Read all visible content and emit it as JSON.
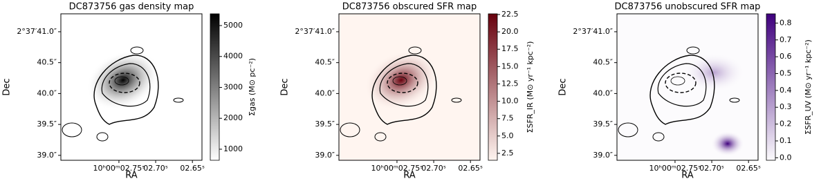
{
  "chart_data": [
    {
      "type": "image",
      "title": "DC873756 gas density map",
      "xlabel": "RA",
      "ylabel": "Dec",
      "xlim": [
        2.829,
        2.637
      ],
      "xticks": [
        {
          "value": 2.75,
          "label": "10ʰ00ᵐ02.75ˢ"
        },
        {
          "value": 2.7,
          "label": "02.70ˢ"
        },
        {
          "value": 2.65,
          "label": "02.65ˢ"
        }
      ],
      "ylim": [
        38.92,
        41.29
      ],
      "yticks": [
        {
          "value": 41.0,
          "label": "2°37′41.0″"
        },
        {
          "value": 40.5,
          "label": "40.5″"
        },
        {
          "value": 40.0,
          "label": "40.0″"
        },
        {
          "value": 39.5,
          "label": "39.5″"
        },
        {
          "value": 39.0,
          "label": "39.0″"
        }
      ],
      "colorbar_label": "Σgas (M⊙ pc⁻²)",
      "clim": [
        642,
        5380
      ],
      "cticks": [
        1000,
        2000,
        3000,
        4000,
        5000
      ],
      "cmap": [
        "#ffffff",
        "#000000"
      ]
    },
    {
      "type": "image",
      "title": "DC873756 obscured SFR map",
      "xlabel": "RA",
      "ylabel": "Dec",
      "xlim": [
        2.829,
        2.637
      ],
      "xticks": [
        {
          "value": 2.75,
          "label": "10ʰ00ᵐ02.75ˢ"
        },
        {
          "value": 2.7,
          "label": "02.70ˢ"
        },
        {
          "value": 2.65,
          "label": "02.65ˢ"
        }
      ],
      "ylim": [
        38.92,
        41.29
      ],
      "yticks": [
        {
          "value": 41.0,
          "label": "2°37′41.0″"
        },
        {
          "value": 40.5,
          "label": "40.5″"
        },
        {
          "value": 40.0,
          "label": "40.0″"
        },
        {
          "value": 39.5,
          "label": "39.5″"
        },
        {
          "value": 39.0,
          "label": "39.0″"
        }
      ],
      "colorbar_label": "ΣSFR_IR (M⊙ yr⁻¹ kpc⁻²)",
      "clim": [
        1.5,
        22.6
      ],
      "cticks": [
        2.5,
        {
          "value": 5,
          "label": "5.0"
        },
        7.5,
        {
          "value": 10,
          "label": "10.0"
        },
        12.5,
        {
          "value": 15,
          "label": "15.0"
        },
        17.5,
        {
          "value": 20,
          "label": "20.0"
        },
        22.5
      ],
      "cmap": [
        "#fff5f0",
        "#67000d"
      ]
    },
    {
      "type": "image",
      "title": "DC873756 unobscured SFR map",
      "xlabel": "RA",
      "ylabel": "Dec",
      "xlim": [
        2.829,
        2.637
      ],
      "xticks": [
        {
          "value": 2.75,
          "label": "10ʰ00ᵐ02.75ˢ"
        },
        {
          "value": 2.7,
          "label": "02.70ˢ"
        },
        {
          "value": 2.65,
          "label": "02.65ˢ"
        }
      ],
      "ylim": [
        38.92,
        41.29
      ],
      "yticks": [
        {
          "value": 41.0,
          "label": "2°37′41.0″"
        },
        {
          "value": 40.5,
          "label": "40.5″"
        },
        {
          "value": 40.0,
          "label": "40.0″"
        },
        {
          "value": 39.5,
          "label": "39.5″"
        },
        {
          "value": 39.0,
          "label": "39.0″"
        }
      ],
      "colorbar_label": "ΣSFR_UV (M⊙ yr⁻¹ kpc⁻²)",
      "clim": [
        -0.015,
        0.855
      ],
      "cticks": [
        {
          "value": 0,
          "label": "0.0"
        },
        0.1,
        0.2,
        0.3,
        0.4,
        0.5,
        0.6,
        0.7,
        0.8
      ],
      "cmap": [
        "#fcfbfd",
        "#3f007d"
      ]
    }
  ]
}
